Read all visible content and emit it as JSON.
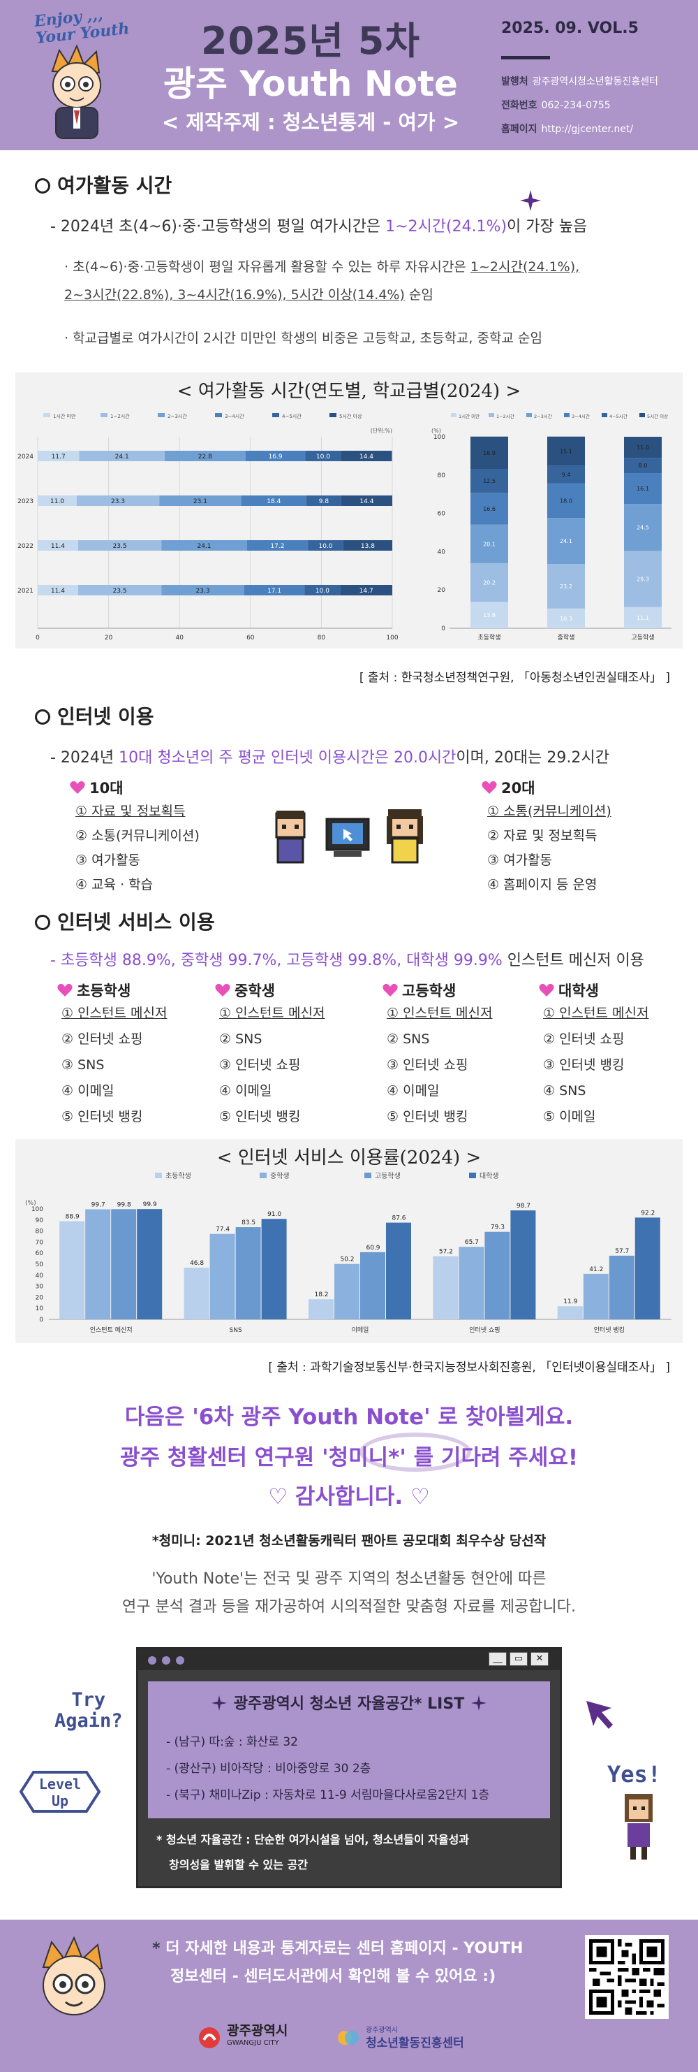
{
  "header": {
    "enjoy_line1": "Enjoy ,,,",
    "enjoy_line2": "Your Youth",
    "title_line1": "2025년 5차",
    "title_line2": "광주 Youth Note",
    "subtitle": "< 제작주제 : 청소년통계 - 여가 >",
    "volume": "2025. 09. VOL.5",
    "publisher_label": "발행처",
    "publisher": "광주광역시청소년활동진흥센터",
    "phone_label": "전화번호",
    "phone": "062-234-0755",
    "homepage_label": "홈페이지",
    "homepage": "http://gjcenter.net/"
  },
  "leisure": {
    "heading": "여가활동 시간",
    "main_pre": "- 2024년 초(4~6)·중·고등학생의 평일 여가시간은 ",
    "main_highlight": "1~2시간(24.1%)",
    "main_post": "이 가장 높음",
    "detail1_pre": "· 초(4~6)·중·고등학생이 평일 자유롭게 활용할 수 있는 하루 자유시간은 ",
    "detail1_u1": "1~2시간(24.1%),",
    "detail1_u2": "2~3시간(22.8%), 3~4시간(16.9%), 5시간 이상(14.4%)",
    "detail1_post": " 순임",
    "detail2": "· 학교급별로 여가시간이 2시간 미만인 학생의 비중은 고등학교, 초등학교, 중학교 순임",
    "chart_title": "< 여가활동 시간(연도별,  학교급별(2024) >",
    "source": "[ 출처 : 한국청소년정책연구원, 「아동청소년인권실태조사」 ]"
  },
  "internet": {
    "heading": "인터넷 이용",
    "main_pre": "- 2024년 ",
    "main_h1": "10대 청소년의 주 평균 인터넷 이용시간은 20.0시간",
    "main_post": "이며, 20대는 29.2시간",
    "teen_title": "10대",
    "teen_items": [
      "① 자료 및 정보획득",
      "② 소통(커뮤니케이션)",
      "③ 여가활동",
      "④ 교육 · 학습"
    ],
    "twenties_title": "20대",
    "twenties_items": [
      "① 소통(커뮤니케이션)",
      "② 자료 및 정보획득",
      "③ 여가활동",
      "④ 홈페이지 등 운영"
    ]
  },
  "service": {
    "heading": "인터넷 서비스 이용",
    "main_h": "- 초등학생 88.9%, 중학생 99.7%, 고등학생 99.8%, 대학생 99.9%",
    "main_post": " 인스턴트 메신저 이용",
    "columns": [
      {
        "title": "초등학생",
        "items": [
          "① 인스턴트 메신저",
          "② 인터넷 쇼핑",
          "③ SNS",
          "④ 이메일",
          "⑤ 인터넷 뱅킹"
        ]
      },
      {
        "title": "중학생",
        "items": [
          "① 인스턴트 메신저",
          "② SNS",
          "③ 인터넷 쇼핑",
          "④ 이메일",
          "⑤ 인터넷 뱅킹"
        ]
      },
      {
        "title": "고등학생",
        "items": [
          "① 인스턴트 메신저",
          "② SNS",
          "③ 인터넷 쇼핑",
          "④ 이메일",
          "⑤ 인터넷 뱅킹"
        ]
      },
      {
        "title": "대학생",
        "items": [
          "① 인스턴트 메신저",
          "② 인터넷 쇼핑",
          "③ 인터넷 뱅킹",
          "④ SNS",
          "⑤ 이메일"
        ]
      }
    ],
    "chart_title": "< 인터넷 서비스 이용률(2024) >",
    "source": "[ 출처 : 과학기술정보통신부·한국지능정보사회진흥원, 「인터넷이용실태조사」 ]"
  },
  "closing": {
    "line1": "다음은 '6차 광주 Youth Note' 로 찾아뵐게요.",
    "line2": "광주 청활센터 연구원  '청미니*' 를 기다려 주세요!",
    "line3": "♡  감사합니다.  ♡",
    "note": "*청미니: 2021년 청소년활동캐릭터 팬아트 공모대회 최우수상 당선작",
    "desc1": "'Youth Note'는 전국 및 광주 지역의 청소년활동 현안에 따른",
    "desc2": "연구 분석 결과 등을 재가공하여 시의적절한 맞춤형 자료를 제공합니다."
  },
  "window": {
    "title": "광주광역시 청소년 자율공간* LIST",
    "items": [
      "- (남구) 따:숲 : 화산로 32",
      "- (광산구) 비아작당 : 비아중앙로 30 2층",
      "- (북구) 채미나Zip : 자동차로 11-9 서림마을다사로움2단지 1층"
    ],
    "note1": "* 청소년 자율공간 : 단순한 여가시설을 넘어, 청소년들이 자율성과",
    "note2": "창의성을 발휘할 수 있는 공간",
    "min_label": "__",
    "max_label": "▭",
    "close_label": "✕",
    "try1": "Try",
    "try2": "Again?",
    "level1": "Level",
    "level2": "Up",
    "yes": "Yes!"
  },
  "footer": {
    "line1": "더 자세한 내용과 통계자료는 센터 홈페이지 - YOUTH",
    "line2": "정보센터 - 센터도서관에서 확인해 볼 수 있어요 :)",
    "star": "*",
    "logo1_name": "광주광역시",
    "logo1_sub": "GWANGJU CITY",
    "logo2_sub": "광주광역시",
    "logo2_name": "청소년활동진흥센터"
  },
  "colors": {
    "header_bg": "#ad94c9",
    "accent_purple": "#8a4fcf",
    "series": [
      "#c5d9ef",
      "#9dbde3",
      "#6f9fd3",
      "#4a80be",
      "#36649c",
      "#2b5180"
    ]
  },
  "chart_data": [
    {
      "type": "bar",
      "orientation": "horizontal-stacked",
      "legend": [
        "1시간 미만",
        "1~2시간",
        "2~3시간",
        "3~4시간",
        "4~5시간",
        "5시간 이상"
      ],
      "unit_label": "(단위:%)",
      "categories": [
        "2024",
        "2023",
        "2022",
        "2021"
      ],
      "series": [
        {
          "name": "1시간 미만",
          "values": [
            11.7,
            11.0,
            11.4,
            11.4
          ]
        },
        {
          "name": "1~2시간",
          "values": [
            24.1,
            23.3,
            23.5,
            23.5
          ]
        },
        {
          "name": "2~3시간",
          "values": [
            22.8,
            23.1,
            24.1,
            23.3
          ]
        },
        {
          "name": "3~4시간",
          "values": [
            16.9,
            18.4,
            17.2,
            17.1
          ]
        },
        {
          "name": "4~5시간",
          "values": [
            10.0,
            9.8,
            10.0,
            10.0
          ]
        },
        {
          "name": "5시간 이상",
          "values": [
            14.4,
            14.4,
            13.8,
            14.7
          ]
        }
      ],
      "xticks": [
        "0",
        "20",
        "40",
        "60",
        "80",
        "100"
      ],
      "xlim": [
        0,
        100
      ]
    },
    {
      "type": "bar",
      "orientation": "vertical-stacked",
      "legend": [
        "1시간 미만",
        "1~2시간",
        "2~3시간",
        "3~4시간",
        "4~5시간",
        "5시간 이상"
      ],
      "unit_label": "(%)",
      "categories": [
        "초등학생",
        "중학생",
        "고등학생"
      ],
      "series": [
        {
          "name": "1시간 미만",
          "values": [
            13.8,
            10.3,
            11.1
          ]
        },
        {
          "name": "1~2시간",
          "values": [
            20.2,
            23.2,
            29.3
          ]
        },
        {
          "name": "2~3시간",
          "values": [
            20.1,
            24.1,
            24.5
          ]
        },
        {
          "name": "3~4시간",
          "values": [
            16.6,
            18.0,
            16.1
          ]
        },
        {
          "name": "4~5시간",
          "values": [
            12.5,
            9.4,
            8.0
          ]
        },
        {
          "name": "5시간 이상",
          "values": [
            16.9,
            15.1,
            11.0
          ]
        }
      ],
      "yticks": [
        "0",
        "20",
        "40",
        "60",
        "80",
        "100"
      ],
      "ylim": [
        0,
        100
      ]
    },
    {
      "type": "bar",
      "orientation": "vertical-grouped",
      "unit_label": "(%)",
      "categories": [
        "인스턴트 메신저",
        "SNS",
        "이메일",
        "인터넷 쇼핑",
        "인터넷 뱅킹"
      ],
      "series": [
        {
          "name": "초등학생",
          "values": [
            88.9,
            46.8,
            18.2,
            57.2,
            11.9
          ]
        },
        {
          "name": "중학생",
          "values": [
            99.7,
            77.4,
            50.2,
            65.7,
            41.2
          ]
        },
        {
          "name": "고등학생",
          "values": [
            99.8,
            83.5,
            60.9,
            79.3,
            57.7
          ]
        },
        {
          "name": "대학생",
          "values": [
            99.9,
            91.0,
            87.6,
            98.7,
            92.2
          ]
        }
      ],
      "yticks": [
        "0",
        "10",
        "20",
        "30",
        "40",
        "50",
        "60",
        "70",
        "80",
        "90",
        "100"
      ],
      "ylim": [
        0,
        100
      ]
    }
  ]
}
